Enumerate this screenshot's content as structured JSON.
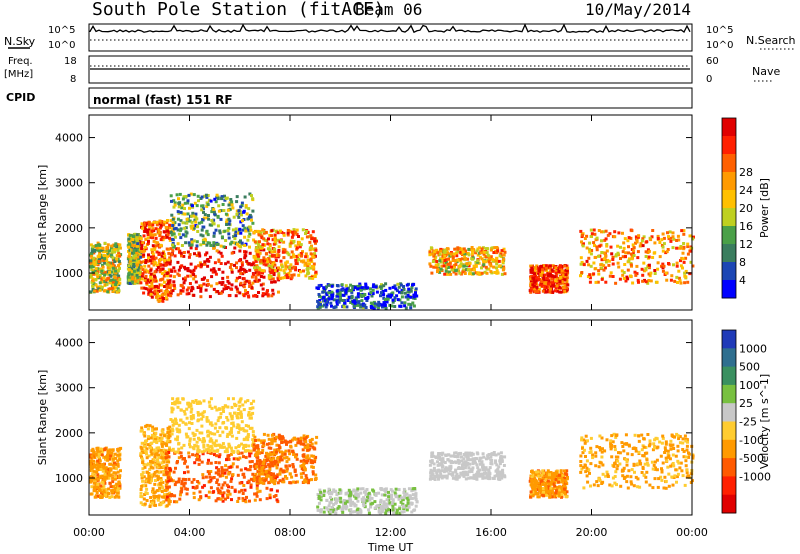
{
  "header": {
    "station": "South Pole Station (fitACF)",
    "beam": "Beam 06",
    "date": "10/May/2014"
  },
  "mode_text": "normal (fast) 151 RF",
  "strip_labels": {
    "nsky": "N.Sky",
    "nsearch": "N.Search",
    "freq": "Freq.",
    "freq_unit": "[MHz]",
    "nave": "Nave",
    "cpid": "CPID",
    "noise_top": "10^5",
    "noise_bottom": "10^0",
    "freq_top": "18",
    "freq_bottom": "8",
    "nave_top": "60",
    "nave_bottom": "0"
  },
  "chart_data": [
    {
      "type": "heatmap",
      "title": "Power",
      "ylabel": "Slant Range [km]",
      "xlabel": "",
      "x_range_hours": [
        0,
        24
      ],
      "ylim": [
        180,
        4500
      ],
      "y_ticks": [
        1000,
        2000,
        3000,
        4000
      ],
      "x_ticks": [
        "00:00",
        "04:00",
        "08:00",
        "12:00",
        "16:00",
        "20:00",
        "00:00"
      ],
      "colorbar": {
        "label": "Power [dB]",
        "ticks": [
          4,
          8,
          12,
          16,
          20,
          24,
          28
        ],
        "colors": [
          "#0000ff",
          "#1c46b4",
          "#3a7d5e",
          "#4aa048",
          "#bfd020",
          "#ffc000",
          "#ff9a00",
          "#ff6000",
          "#ff2000",
          "#e00000"
        ]
      },
      "echo_regions": [
        {
          "t": [
            0.0,
            1.2
          ],
          "r": [
            600,
            1700
          ],
          "value": 16
        },
        {
          "t": [
            1.5,
            2.0
          ],
          "r": [
            800,
            1900
          ],
          "value": 14
        },
        {
          "t": [
            2.0,
            3.2
          ],
          "r": [
            400,
            2200
          ],
          "value": 22
        },
        {
          "t": [
            3.0,
            7.5
          ],
          "r": [
            500,
            1600
          ],
          "value": 26
        },
        {
          "t": [
            3.2,
            6.5
          ],
          "r": [
            1600,
            2800
          ],
          "value": 12
        },
        {
          "t": [
            6.5,
            9.0
          ],
          "r": [
            900,
            2000
          ],
          "value": 20
        },
        {
          "t": [
            9.0,
            13.0
          ],
          "r": [
            250,
            800
          ],
          "value": 8
        },
        {
          "t": [
            13.5,
            16.5
          ],
          "r": [
            1000,
            1600
          ],
          "value": 18
        },
        {
          "t": [
            17.5,
            19.0
          ],
          "r": [
            600,
            1200
          ],
          "value": 24
        },
        {
          "t": [
            19.5,
            24.0
          ],
          "r": [
            800,
            2000
          ],
          "value": 20
        }
      ]
    },
    {
      "type": "heatmap",
      "title": "Velocity",
      "ylabel": "Slant Range [km]",
      "xlabel": "Time UT",
      "x_range_hours": [
        0,
        24
      ],
      "ylim": [
        180,
        4500
      ],
      "y_ticks": [
        1000,
        2000,
        3000,
        4000
      ],
      "x_ticks": [
        "00:00",
        "04:00",
        "08:00",
        "12:00",
        "16:00",
        "20:00",
        "00:00"
      ],
      "colorbar": {
        "label": "Velocity [m s^-1]",
        "ticks": [
          1000,
          500,
          100,
          25,
          -25,
          -100,
          -500,
          -1000
        ],
        "colors": [
          "#1f3ab8",
          "#2f6f8f",
          "#3a9060",
          "#78c040",
          "#c8c8c8",
          "#ffcc30",
          "#ff9a00",
          "#ff5a00",
          "#ff2000",
          "#e00000"
        ]
      },
      "echo_regions": [
        {
          "t": [
            0.0,
            1.2
          ],
          "r": [
            600,
            1700
          ],
          "value": -300
        },
        {
          "t": [
            2.0,
            3.2
          ],
          "r": [
            400,
            2200
          ],
          "value": -200
        },
        {
          "t": [
            3.0,
            7.5
          ],
          "r": [
            500,
            1600
          ],
          "value": -500
        },
        {
          "t": [
            3.2,
            6.5
          ],
          "r": [
            1600,
            2800
          ],
          "value": -80
        },
        {
          "t": [
            6.5,
            9.0
          ],
          "r": [
            900,
            2000
          ],
          "value": -400
        },
        {
          "t": [
            9.0,
            13.0
          ],
          "r": [
            250,
            800
          ],
          "value": 150
        },
        {
          "t": [
            13.5,
            16.5
          ],
          "r": [
            1000,
            1600
          ],
          "value": 50
        },
        {
          "t": [
            17.5,
            19.0
          ],
          "r": [
            600,
            1200
          ],
          "value": -300
        },
        {
          "t": [
            19.5,
            24.0
          ],
          "r": [
            800,
            2000
          ],
          "value": -250
        }
      ]
    }
  ]
}
